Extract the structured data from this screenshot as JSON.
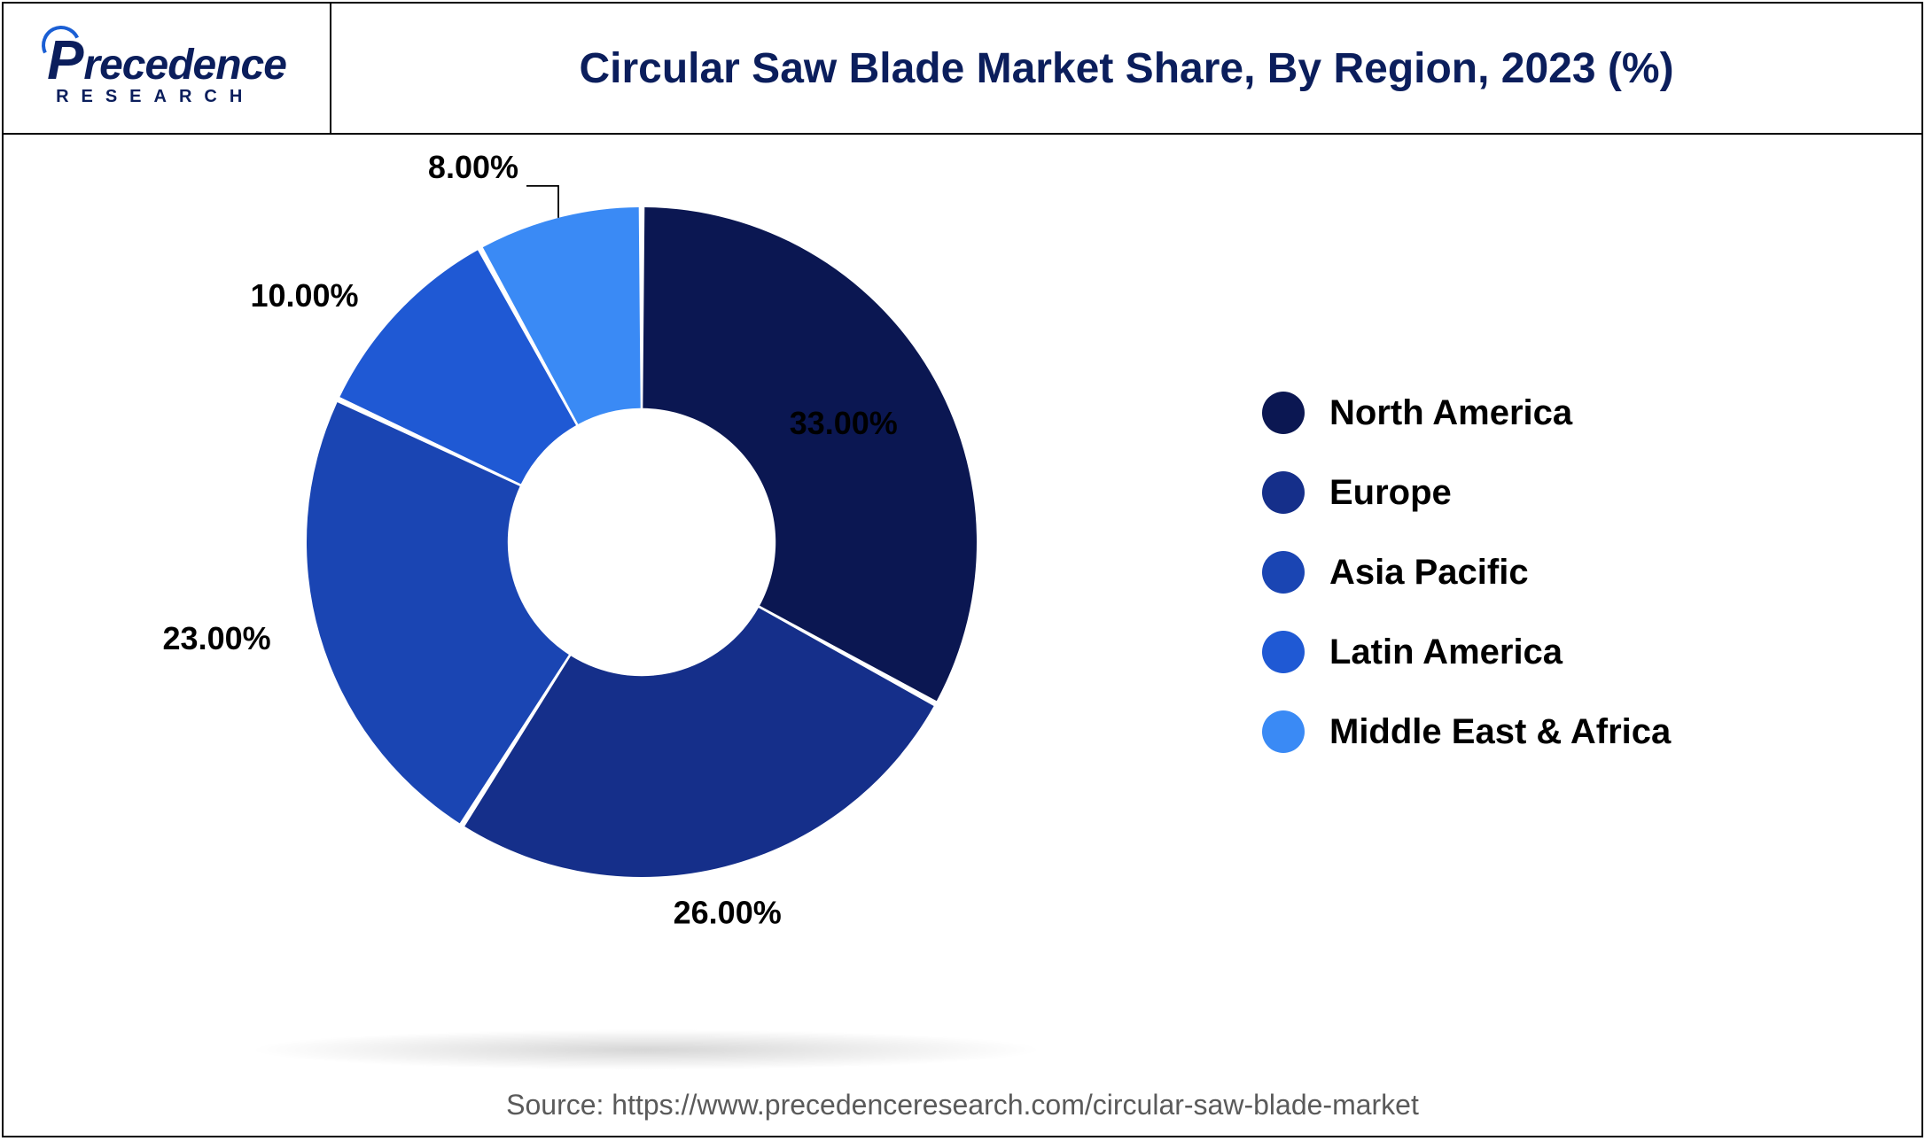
{
  "logo": {
    "brand_main": "recedence",
    "brand_first_letter": "P",
    "brand_sub": "RESEARCH",
    "brand_color": "#0b1e5c",
    "arc_color": "#1b5fd4"
  },
  "chart": {
    "type": "donut",
    "title": "Circular Saw Blade Market Share, By Region, 2023 (%)",
    "title_fontsize": 48,
    "title_color": "#0b1e5c",
    "background_color": "#ffffff",
    "inner_radius_ratio": 0.4,
    "outer_radius": 420,
    "label_fontsize": 40,
    "label_color": "#000000",
    "slice_gap_deg": 1.0,
    "start_angle_deg": 90,
    "slices": [
      {
        "region": "North America",
        "value": 33.0,
        "color": "#0b1752",
        "label": "33.00%",
        "label_pos": "inside",
        "label_fill": "#ffffff"
      },
      {
        "region": "Europe",
        "value": 26.0,
        "color": "#152f8a",
        "label": "26.00%",
        "label_pos": "outside",
        "label_fill": "#000000"
      },
      {
        "region": "Asia Pacific",
        "value": 23.0,
        "color": "#1a45b3",
        "label": "23.00%",
        "label_pos": "outside",
        "label_fill": "#000000"
      },
      {
        "region": "Latin America",
        "value": 10.0,
        "color": "#1f59d4",
        "label": "10.00%",
        "label_pos": "outside",
        "label_fill": "#000000"
      },
      {
        "region": "Middle East & Africa",
        "value": 8.0,
        "color": "#3a8af5",
        "label": "8.00%",
        "label_pos": "outside",
        "label_fill": "#000000"
      }
    ]
  },
  "legend": {
    "swatch_shape": "circle",
    "swatch_size": 48,
    "font_size": 40,
    "font_weight": 600,
    "items": [
      {
        "label": "North America",
        "color": "#0b1752"
      },
      {
        "label": "Europe",
        "color": "#152f8a"
      },
      {
        "label": "Asia Pacific",
        "color": "#1a45b3"
      },
      {
        "label": "Latin America",
        "color": "#1f59d4"
      },
      {
        "label": "Middle East & Africa",
        "color": "#3a8af5"
      }
    ]
  },
  "source": {
    "text": "Source: https://www.precedenceresearch.com/circular-saw-blade-market",
    "font_size": 32,
    "color": "#5a5a5a"
  }
}
